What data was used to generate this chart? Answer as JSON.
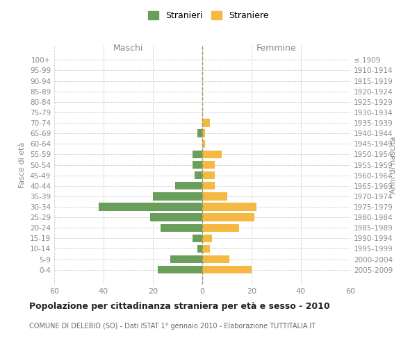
{
  "age_groups": [
    "100+",
    "95-99",
    "90-94",
    "85-89",
    "80-84",
    "75-79",
    "70-74",
    "65-69",
    "60-64",
    "55-59",
    "50-54",
    "45-49",
    "40-44",
    "35-39",
    "30-34",
    "25-29",
    "20-24",
    "15-19",
    "10-14",
    "5-9",
    "0-4"
  ],
  "birth_years": [
    "≤ 1909",
    "1910-1914",
    "1915-1919",
    "1920-1924",
    "1925-1929",
    "1930-1934",
    "1935-1939",
    "1940-1944",
    "1945-1949",
    "1950-1954",
    "1955-1959",
    "1960-1964",
    "1965-1969",
    "1970-1974",
    "1975-1979",
    "1980-1984",
    "1985-1989",
    "1990-1994",
    "1995-1999",
    "2000-2004",
    "2005-2009"
  ],
  "males": [
    0,
    0,
    0,
    0,
    0,
    0,
    0,
    2,
    0,
    4,
    4,
    3,
    11,
    20,
    42,
    21,
    17,
    4,
    2,
    13,
    18
  ],
  "females": [
    0,
    0,
    0,
    0,
    0,
    0,
    3,
    1,
    1,
    8,
    5,
    5,
    5,
    10,
    22,
    21,
    15,
    4,
    3,
    11,
    20
  ],
  "color_males": "#6a9e5b",
  "color_females": "#f5b942",
  "title": "Popolazione per cittadinanza straniera per età e sesso - 2010",
  "subtitle": "COMUNE DI DELEBIO (SO) - Dati ISTAT 1° gennaio 2010 - Elaborazione TUTTITALIA.IT",
  "xlabel_left": "Maschi",
  "xlabel_right": "Femmine",
  "ylabel_left": "Fasce di età",
  "ylabel_right": "Anni di nascita",
  "xlim": 60,
  "legend_stranieri": "Stranieri",
  "legend_straniere": "Straniere",
  "background_color": "#ffffff",
  "grid_color": "#cccccc"
}
